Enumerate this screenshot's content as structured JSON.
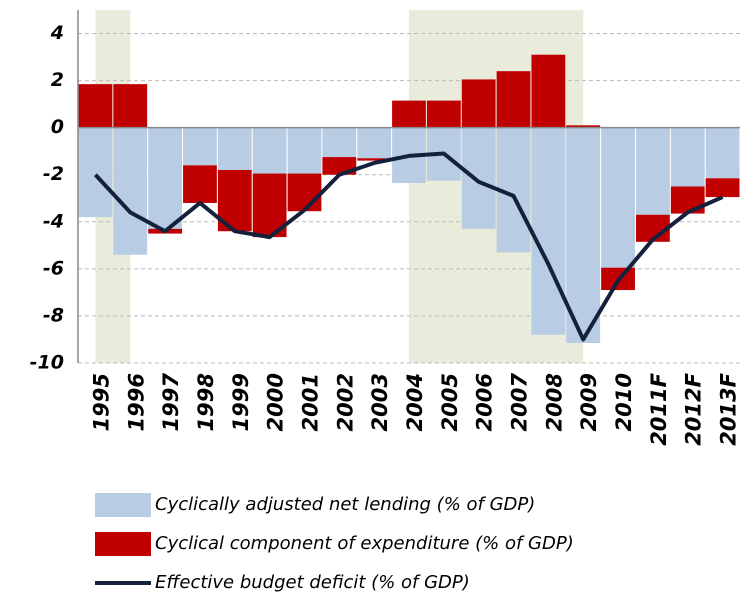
{
  "chart_data": {
    "type": "bar",
    "categories": [
      "1995",
      "1996",
      "1997",
      "1998",
      "1999",
      "2000",
      "2001",
      "2002",
      "2003",
      "2004",
      "2005",
      "2006",
      "2007",
      "2008",
      "2009",
      "2010",
      "2011F",
      "2012F",
      "2013F"
    ],
    "series": [
      {
        "name": "Cyclically adjusted net lending (% of GDP)",
        "type": "bar",
        "color": "#b8cce4",
        "values": [
          -3.8,
          -5.4,
          -4.3,
          -1.6,
          -1.8,
          -1.95,
          -1.95,
          -1.25,
          -1.3,
          -2.35,
          -2.25,
          -4.3,
          -5.3,
          -8.8,
          -9.15,
          -5.95,
          -3.7,
          -2.5,
          -2.15
        ]
      },
      {
        "name": "Cyclical component of expenditure  (% of GDP)",
        "type": "bar",
        "color": "#c00000",
        "values": [
          1.85,
          1.85,
          -0.2,
          -1.6,
          -2.6,
          -2.7,
          -1.6,
          -0.75,
          -0.1,
          1.15,
          1.15,
          2.05,
          2.4,
          3.1,
          0.1,
          -0.95,
          -1.15,
          -1.15,
          -0.8
        ]
      },
      {
        "name": "Effective budget deficit (% of GDP)",
        "type": "line",
        "color": "#14213d",
        "values": [
          -2.0,
          -3.6,
          -4.4,
          -3.2,
          -4.4,
          -4.65,
          -3.5,
          -2.0,
          -1.5,
          -1.2,
          -1.1,
          -2.3,
          -2.9,
          -5.8,
          -9.0,
          -6.5,
          -4.75,
          -3.6,
          -2.95
        ]
      }
    ],
    "shaded_ranges": [
      [
        "1995",
        "1996"
      ],
      [
        "2004",
        "2009"
      ]
    ],
    "shade_color": "#e9ecdb",
    "ylim": [
      -10,
      5
    ],
    "yticks": [
      4,
      2,
      0,
      -2,
      -4,
      -6,
      -8,
      -10
    ],
    "grid": true
  }
}
